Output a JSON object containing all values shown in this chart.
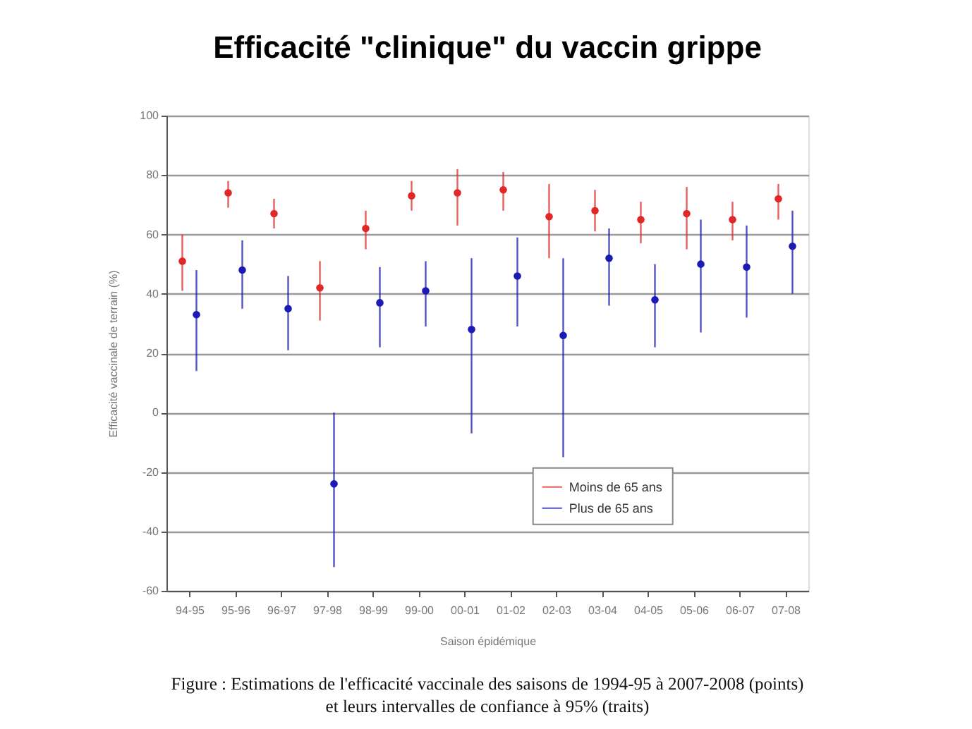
{
  "chart_data": {
    "type": "scatter",
    "title": "Efficacité \"clinique\" du vaccin grippe",
    "xlabel": "Saison épidémique",
    "ylabel": "Efficacité vaccinale de terrain (%)",
    "categories": [
      "94-95",
      "95-96",
      "96-97",
      "97-98",
      "98-99",
      "99-00",
      "00-01",
      "01-02",
      "02-03",
      "03-04",
      "04-05",
      "05-06",
      "06-07",
      "07-08"
    ],
    "series": [
      {
        "name": "Moins de 65 ans",
        "color": "#e02828",
        "values": [
          51,
          74,
          67,
          42,
          62,
          73,
          74,
          75,
          66,
          68,
          65,
          67,
          65,
          72
        ],
        "errors": [
          [
            41,
            60
          ],
          [
            69,
            78
          ],
          [
            62,
            72
          ],
          [
            31,
            51
          ],
          [
            55,
            68
          ],
          [
            68,
            78
          ],
          [
            63,
            82
          ],
          [
            68,
            81
          ],
          [
            52,
            77
          ],
          [
            61,
            75
          ],
          [
            57,
            71
          ],
          [
            55,
            76
          ],
          [
            58,
            71
          ],
          [
            65,
            77
          ]
        ]
      },
      {
        "name": "Plus de 65 ans",
        "color": "#1a1ab4",
        "values": [
          33,
          48,
          35,
          -24,
          37,
          41,
          28,
          46,
          26,
          52,
          38,
          50,
          49,
          56
        ],
        "errors": [
          [
            14,
            48
          ],
          [
            35,
            58
          ],
          [
            21,
            46
          ],
          [
            -52,
            0
          ],
          [
            22,
            49
          ],
          [
            29,
            51
          ],
          [
            -7,
            52
          ],
          [
            29,
            59
          ],
          [
            -15,
            52
          ],
          [
            36,
            62
          ],
          [
            22,
            50
          ],
          [
            27,
            65
          ],
          [
            32,
            63
          ],
          [
            40,
            68
          ]
        ]
      }
    ],
    "ylim": [
      -60,
      100
    ],
    "yticks": [
      -60,
      -40,
      -20,
      0,
      20,
      40,
      60,
      80,
      100
    ],
    "grid": "y",
    "legend": "bottom right",
    "marker": "circle",
    "annotations": [
      "Figure : Estimations de l'efficacité vaccinale des saisons de 1994-95 à 2007-2008 (points)",
      "et leurs intervalles de confiance à 95% (traits)"
    ]
  }
}
